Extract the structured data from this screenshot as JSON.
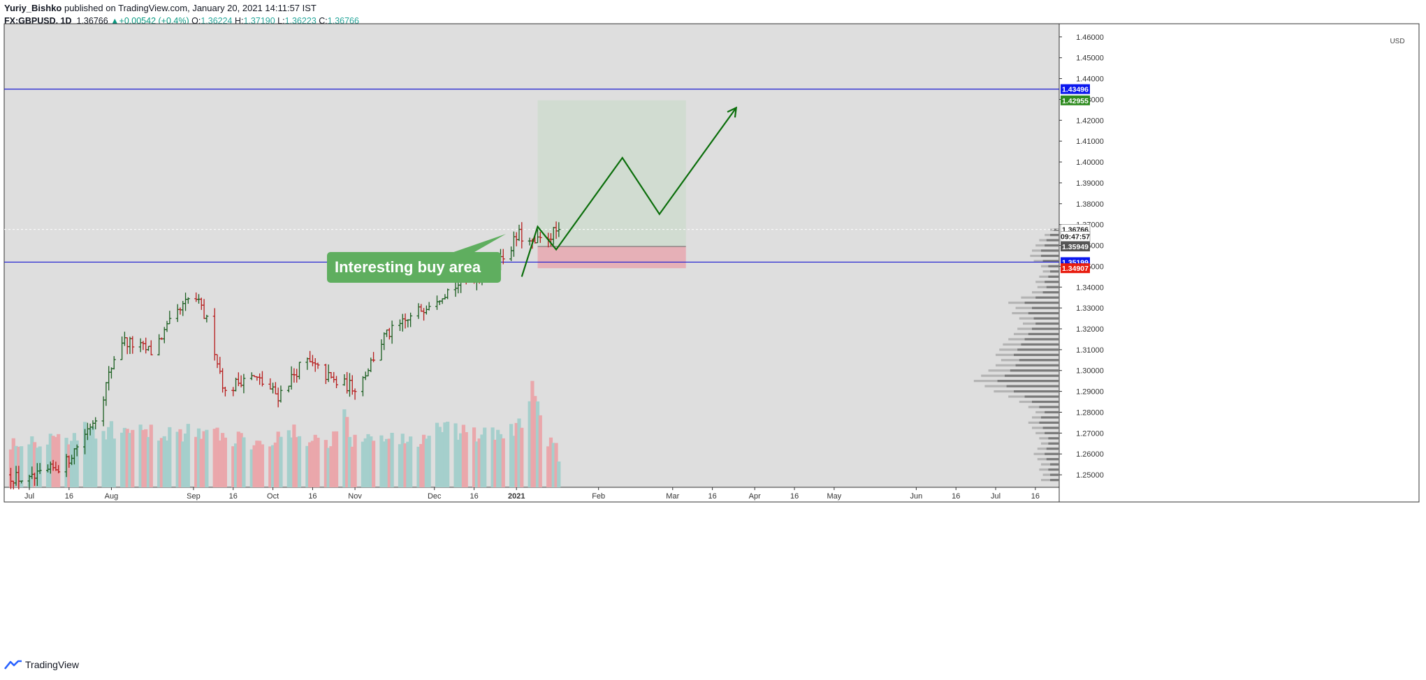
{
  "header": {
    "author": "Yuriy_Bishko",
    "published": "published on TradingView.com, January 20, 2021 14:11:57 IST",
    "symbol": "FX:GBPUSD, 1D",
    "last": "1.36766",
    "change": "+0.00542 (+0.4%)",
    "o_label": "O:",
    "o": "1.36224",
    "h_label": "H:",
    "h": "1.37190",
    "l_label": "L:",
    "l": "1.36223",
    "c_label": "C:",
    "c": "1.36766"
  },
  "footer": {
    "brand": "TradingView"
  },
  "colors": {
    "bg": "#dedede",
    "up": "#1b5e20",
    "down": "#b71c1c",
    "vol_up": "#a5cfcc",
    "vol_down": "#eaa7ab",
    "level_line": "#1a1ad1",
    "projection": "#0b6e0b",
    "target_zone": "#cfdccf",
    "stop_zone": "#e7a8b0",
    "callout": "#5fae5f",
    "tag_blue": "#0b18ee",
    "tag_green": "#2e8b1f",
    "tag_red": "#e81c0f",
    "tag_dark": "#555555"
  },
  "chart_data": {
    "type": "candlestick",
    "title": "FX:GBPUSD, 1D",
    "price_axis": {
      "unit": "USD",
      "ylim": [
        1.244,
        1.4663
      ],
      "ticks": [
        "1.46000",
        "1.45000",
        "1.44000",
        "1.43000",
        "1.42000",
        "1.41000",
        "1.40000",
        "1.39000",
        "1.38000",
        "1.37000",
        "1.36000",
        "1.35000",
        "1.34000",
        "1.33000",
        "1.32000",
        "1.31000",
        "1.30000",
        "1.29000",
        "1.28000",
        "1.27000",
        "1.26000",
        "1.25000"
      ]
    },
    "time_axis": {
      "ticks": [
        {
          "label": "Jul",
          "day": -84
        },
        {
          "label": "16",
          "day": -69
        },
        {
          "label": "Aug",
          "day": -53
        },
        {
          "label": "Sep",
          "day": -22
        },
        {
          "label": "16",
          "day": -7
        },
        {
          "label": "Oct",
          "day": 8
        },
        {
          "label": "16",
          "day": 23
        },
        {
          "label": "Nov",
          "day": 39
        },
        {
          "label": "Dec",
          "day": 69
        },
        {
          "label": "16",
          "day": 84
        },
        {
          "label": "2021",
          "day": 100
        },
        {
          "label": "Feb",
          "day": 131
        },
        {
          "label": "Mar",
          "day": 159
        },
        {
          "label": "16",
          "day": 174
        },
        {
          "label": "Apr",
          "day": 190
        },
        {
          "label": "16",
          "day": 205
        },
        {
          "label": "May",
          "day": 220
        },
        {
          "label": "Jun",
          "day": 251
        },
        {
          "label": "16",
          "day": 266
        },
        {
          "label": "Jul",
          "day": 281
        },
        {
          "label": "16",
          "day": 296
        }
      ],
      "day_range": [
        -93.5,
        305
      ]
    },
    "price_tags": [
      {
        "label": "1.43496",
        "price": 1.43496,
        "color": "blue"
      },
      {
        "label": "1.42955",
        "price": 1.42955,
        "color": "green"
      },
      {
        "label": "1.36766",
        "price": 1.36766,
        "color": "white"
      },
      {
        "label": "09:47:57",
        "price": 1.36436,
        "color": "white"
      },
      {
        "label": "1.35949",
        "price": 1.35949,
        "color": "dark"
      },
      {
        "label": "1.35199",
        "price": 1.35199,
        "color": "blue"
      },
      {
        "label": "1.34907",
        "price": 1.34907,
        "color": "red"
      }
    ],
    "horizontal_levels": [
      1.43496,
      1.35199
    ],
    "last_price_line": 1.36766,
    "position": {
      "start_day": 108,
      "end_day": 164,
      "entry": 1.35949,
      "target": 1.42955,
      "stop": 1.34907
    },
    "projection_path": [
      [
        102,
        1.345
      ],
      [
        108,
        1.369
      ],
      [
        115,
        1.358
      ],
      [
        140,
        1.402
      ],
      [
        154,
        1.375
      ],
      [
        183,
        1.426
      ]
    ],
    "annotation": {
      "text": "Interesting buy area",
      "point_day": 96,
      "point_price": 1.3655
    },
    "anchors": [
      [
        -93,
        1.25
      ],
      [
        -84,
        1.247
      ],
      [
        -70,
        1.256
      ],
      [
        -58,
        1.28
      ],
      [
        -50,
        1.315
      ],
      [
        -38,
        1.309
      ],
      [
        -31,
        1.322
      ],
      [
        -22,
        1.337
      ],
      [
        -16,
        1.321
      ],
      [
        -10,
        1.289
      ],
      [
        -2,
        1.298
      ],
      [
        3,
        1.295
      ],
      [
        10,
        1.288
      ],
      [
        20,
        1.305
      ],
      [
        32,
        1.294
      ],
      [
        40,
        1.292
      ],
      [
        50,
        1.316
      ],
      [
        60,
        1.325
      ],
      [
        68,
        1.334
      ],
      [
        76,
        1.34
      ],
      [
        84,
        1.345
      ],
      [
        91,
        1.348
      ],
      [
        101,
        1.365
      ],
      [
        106,
        1.36
      ],
      [
        116,
        1.3676
      ]
    ],
    "volume_anchors": [
      [
        -93,
        0.42
      ],
      [
        -70,
        0.45
      ],
      [
        -60,
        0.52
      ],
      [
        -40,
        0.48
      ],
      [
        -22,
        0.5
      ],
      [
        -10,
        0.45
      ],
      [
        0,
        0.42
      ],
      [
        15,
        0.48
      ],
      [
        30,
        0.38
      ],
      [
        34,
        0.78
      ],
      [
        38,
        0.4
      ],
      [
        50,
        0.46
      ],
      [
        62,
        0.4
      ],
      [
        70,
        0.52
      ],
      [
        84,
        0.46
      ],
      [
        100,
        0.5
      ],
      [
        104,
        0.66
      ],
      [
        106,
        1.0
      ],
      [
        110,
        0.44
      ],
      [
        116,
        0.3
      ]
    ],
    "volume_profile": [
      [
        1.2475,
        0.2,
        0.1
      ],
      [
        1.25,
        0.18,
        0.1
      ],
      [
        1.2525,
        0.22,
        0.12
      ],
      [
        1.255,
        0.2,
        0.1
      ],
      [
        1.2575,
        0.24,
        0.14
      ],
      [
        1.26,
        0.28,
        0.16
      ],
      [
        1.2625,
        0.24,
        0.14
      ],
      [
        1.265,
        0.2,
        0.12
      ],
      [
        1.2675,
        0.22,
        0.12
      ],
      [
        1.27,
        0.26,
        0.16
      ],
      [
        1.2725,
        0.3,
        0.18
      ],
      [
        1.275,
        0.34,
        0.22
      ],
      [
        1.2775,
        0.3,
        0.2
      ],
      [
        1.28,
        0.26,
        0.16
      ],
      [
        1.2825,
        0.34,
        0.22
      ],
      [
        1.285,
        0.44,
        0.3
      ],
      [
        1.2875,
        0.56,
        0.38
      ],
      [
        1.29,
        0.72,
        0.5
      ],
      [
        1.2925,
        0.82,
        0.58
      ],
      [
        1.295,
        0.94,
        0.68
      ],
      [
        1.2975,
        0.86,
        0.6
      ],
      [
        1.3,
        0.78,
        0.54
      ],
      [
        1.3025,
        0.7,
        0.48
      ],
      [
        1.305,
        0.64,
        0.44
      ],
      [
        1.3075,
        0.7,
        0.5
      ],
      [
        1.31,
        0.66,
        0.46
      ],
      [
        1.3125,
        0.62,
        0.42
      ],
      [
        1.315,
        0.56,
        0.38
      ],
      [
        1.3175,
        0.5,
        0.34
      ],
      [
        1.32,
        0.46,
        0.3
      ],
      [
        1.3225,
        0.4,
        0.26
      ],
      [
        1.325,
        0.44,
        0.28
      ],
      [
        1.3275,
        0.52,
        0.34
      ],
      [
        1.33,
        0.48,
        0.3
      ],
      [
        1.3325,
        0.56,
        0.38
      ],
      [
        1.335,
        0.42,
        0.26
      ],
      [
        1.3375,
        0.3,
        0.18
      ],
      [
        1.34,
        0.24,
        0.14
      ],
      [
        1.3425,
        0.26,
        0.16
      ],
      [
        1.345,
        0.22,
        0.12
      ],
      [
        1.3475,
        0.18,
        0.1
      ],
      [
        1.35,
        0.2,
        0.12
      ],
      [
        1.3525,
        0.28,
        0.18
      ],
      [
        1.355,
        0.32,
        0.2
      ],
      [
        1.3575,
        0.3,
        0.2
      ],
      [
        1.36,
        0.26,
        0.16
      ],
      [
        1.3625,
        0.22,
        0.14
      ],
      [
        1.365,
        0.16,
        0.1
      ],
      [
        1.3675,
        0.1,
        0.06
      ]
    ]
  }
}
